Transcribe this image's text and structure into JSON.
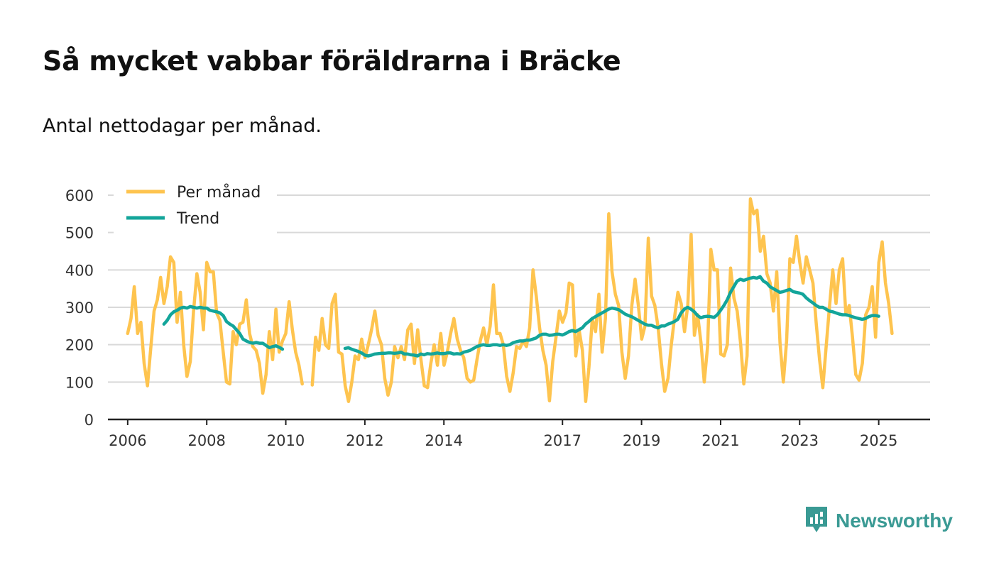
{
  "title": "Så mycket vabbar föräldrarna i Bräcke",
  "subtitle": "Antal nettodagar per månad.",
  "brand": {
    "name": "Newsworthy",
    "icon": "newsworthy-logo-icon"
  },
  "colors": {
    "per_manad": "#fec44f",
    "trend": "#13a59a",
    "grid": "#d9d9d9",
    "axis": "#222222"
  },
  "chart_data": {
    "type": "line",
    "title": "Så mycket vabbar föräldrarna i Bräcke",
    "subtitle": "Antal nettodagar per månad.",
    "xlabel": "",
    "ylabel": "",
    "ylim": [
      0,
      600
    ],
    "xlim": [
      2005.5,
      2026.3
    ],
    "yticks": [
      0,
      100,
      200,
      300,
      400,
      500,
      600
    ],
    "xticks": [
      {
        "value": 2006,
        "label": "2006"
      },
      {
        "value": 2008,
        "label": "2008"
      },
      {
        "value": 2010,
        "label": "2010"
      },
      {
        "value": 2012,
        "label": "2012"
      },
      {
        "value": 2014,
        "label": "2014"
      },
      {
        "value": 2017,
        "label": "2017"
      },
      {
        "value": 2019,
        "label": "2019"
      },
      {
        "value": 2021,
        "label": "2021"
      },
      {
        "value": 2023,
        "label": "2023"
      },
      {
        "value": 2025,
        "label": "2025"
      }
    ],
    "grid": true,
    "legend_position": "top-left",
    "series": [
      {
        "name": "Per månad",
        "color": "#fec44f",
        "segments": [
          {
            "start": 2006.0,
            "values": [
              230,
              270,
              355,
              230,
              260,
              150,
              90,
              190,
              290,
              320,
              380,
              310,
              355,
              435,
              420,
              260,
              340,
              200,
              115,
              155,
              290,
              390,
              340,
              240,
              420,
              395,
              395,
              285,
              265,
              180,
              100,
              95,
              235,
              200,
              255,
              260,
              320,
              230,
              195,
              185,
              150,
              70,
              120,
              235,
              160,
              295,
              180,
              210,
              230,
              315,
              240,
              180,
              145,
              95
            ]
          },
          {
            "start": 2010.67,
            "values": [
              92,
              220,
              185,
              270,
              200,
              190,
              310,
              335,
              180,
              175,
              90,
              48,
              100,
              170,
              160,
              215,
              165,
              200,
              240,
              290,
              225,
              200,
              110,
              65,
              100,
              195,
              165,
              195,
              160,
              240,
              255,
              150,
              240,
              160,
              90,
              85,
              150,
              200,
              145,
              230,
              145,
              180,
              230,
              270,
              215,
              185,
              165,
              110,
              100,
              105,
              160,
              210,
              245,
              200,
              250,
              360,
              230,
              230,
              200,
              115,
              75,
              125,
              195,
              190,
              210,
              195,
              245,
              400,
              330,
              245,
              185,
              145,
              50,
              155,
              220,
              290,
              260,
              285,
              365,
              360,
              170,
              240,
              185,
              48,
              140,
              270,
              235,
              335,
              180,
              270,
              550,
              395,
              335,
              305,
              180,
              110,
              170,
              305,
              375,
              305,
              215,
              250,
              485,
              330,
              305,
              245,
              150,
              75,
              110,
              200,
              275,
              340,
              310,
              235,
              305,
              495,
              225,
              280,
              205,
              100,
              195,
              455,
              400,
              400,
              175,
              170,
              200,
              405,
              325,
              290,
              205,
              95,
              170,
              590,
              550,
              560,
              450,
              490,
              390,
              365,
              290,
              395,
              205,
              100,
              210,
              430,
              420,
              490,
              420,
              365,
              435,
              400,
              365,
              255,
              160,
              85,
              195,
              300,
              400,
              310,
              400,
              430,
              280,
              305,
              220,
              120,
              105,
              150,
              280,
              300,
              355,
              220,
              420,
              475,
              365,
              310,
              230
            ]
          }
        ]
      },
      {
        "name": "Trend",
        "color": "#13a59a",
        "segments": [
          {
            "start": 2006.917,
            "values": [
              255,
              265,
              280,
              288,
              292,
              298,
              300,
              298,
              302,
              300,
              298,
              300,
              298,
              298,
              292,
              290,
              288,
              285,
              278,
              262,
              255,
              250,
              240,
              230,
              215,
              210,
              206,
              204,
              206,
              204,
              204,
              198,
              192,
              195,
              197,
              193,
              188
            ]
          },
          {
            "start": 2011.5,
            "values": [
              190,
              192,
              188,
              185,
              182,
              178,
              172,
              170,
              172,
              175,
              176,
              177,
              177,
              178,
              178,
              177,
              178,
              180,
              175,
              175,
              173,
              172,
              170,
              175,
              173,
              176,
              175,
              176,
              178,
              176,
              176,
              178,
              178,
              175,
              176,
              175,
              180,
              182,
              185,
              190,
              195,
              198,
              200,
              198,
              198,
              200,
              200,
              198,
              200,
              198,
              200,
              205,
              208,
              210,
              210,
              212,
              212,
              215,
              218,
              225,
              228,
              228,
              225,
              226,
              228,
              228,
              226,
              230,
              235,
              238,
              235,
              240,
              245,
              255,
              262,
              270,
              275,
              280,
              285,
              290,
              295,
              298,
              296,
              294,
              288,
              282,
              278,
              275,
              270,
              265,
              260,
              255,
              252,
              252,
              248,
              245,
              250,
              250,
              255,
              258,
              262,
              268,
              285,
              295,
              300,
              295,
              288,
              278,
              272,
              275,
              276,
              275,
              273,
              280,
              292,
              305,
              320,
              340,
              355,
              370,
              375,
              372,
              375,
              378,
              380,
              378,
              382,
              370,
              365,
              355,
              350,
              345,
              340,
              342,
              345,
              348,
              342,
              340,
              338,
              335,
              325,
              318,
              312,
              305,
              300,
              300,
              295,
              290,
              288,
              285,
              282,
              280,
              280,
              278,
              275,
              272,
              270,
              268,
              270,
              275,
              278,
              278,
              276
            ]
          }
        ]
      }
    ]
  }
}
